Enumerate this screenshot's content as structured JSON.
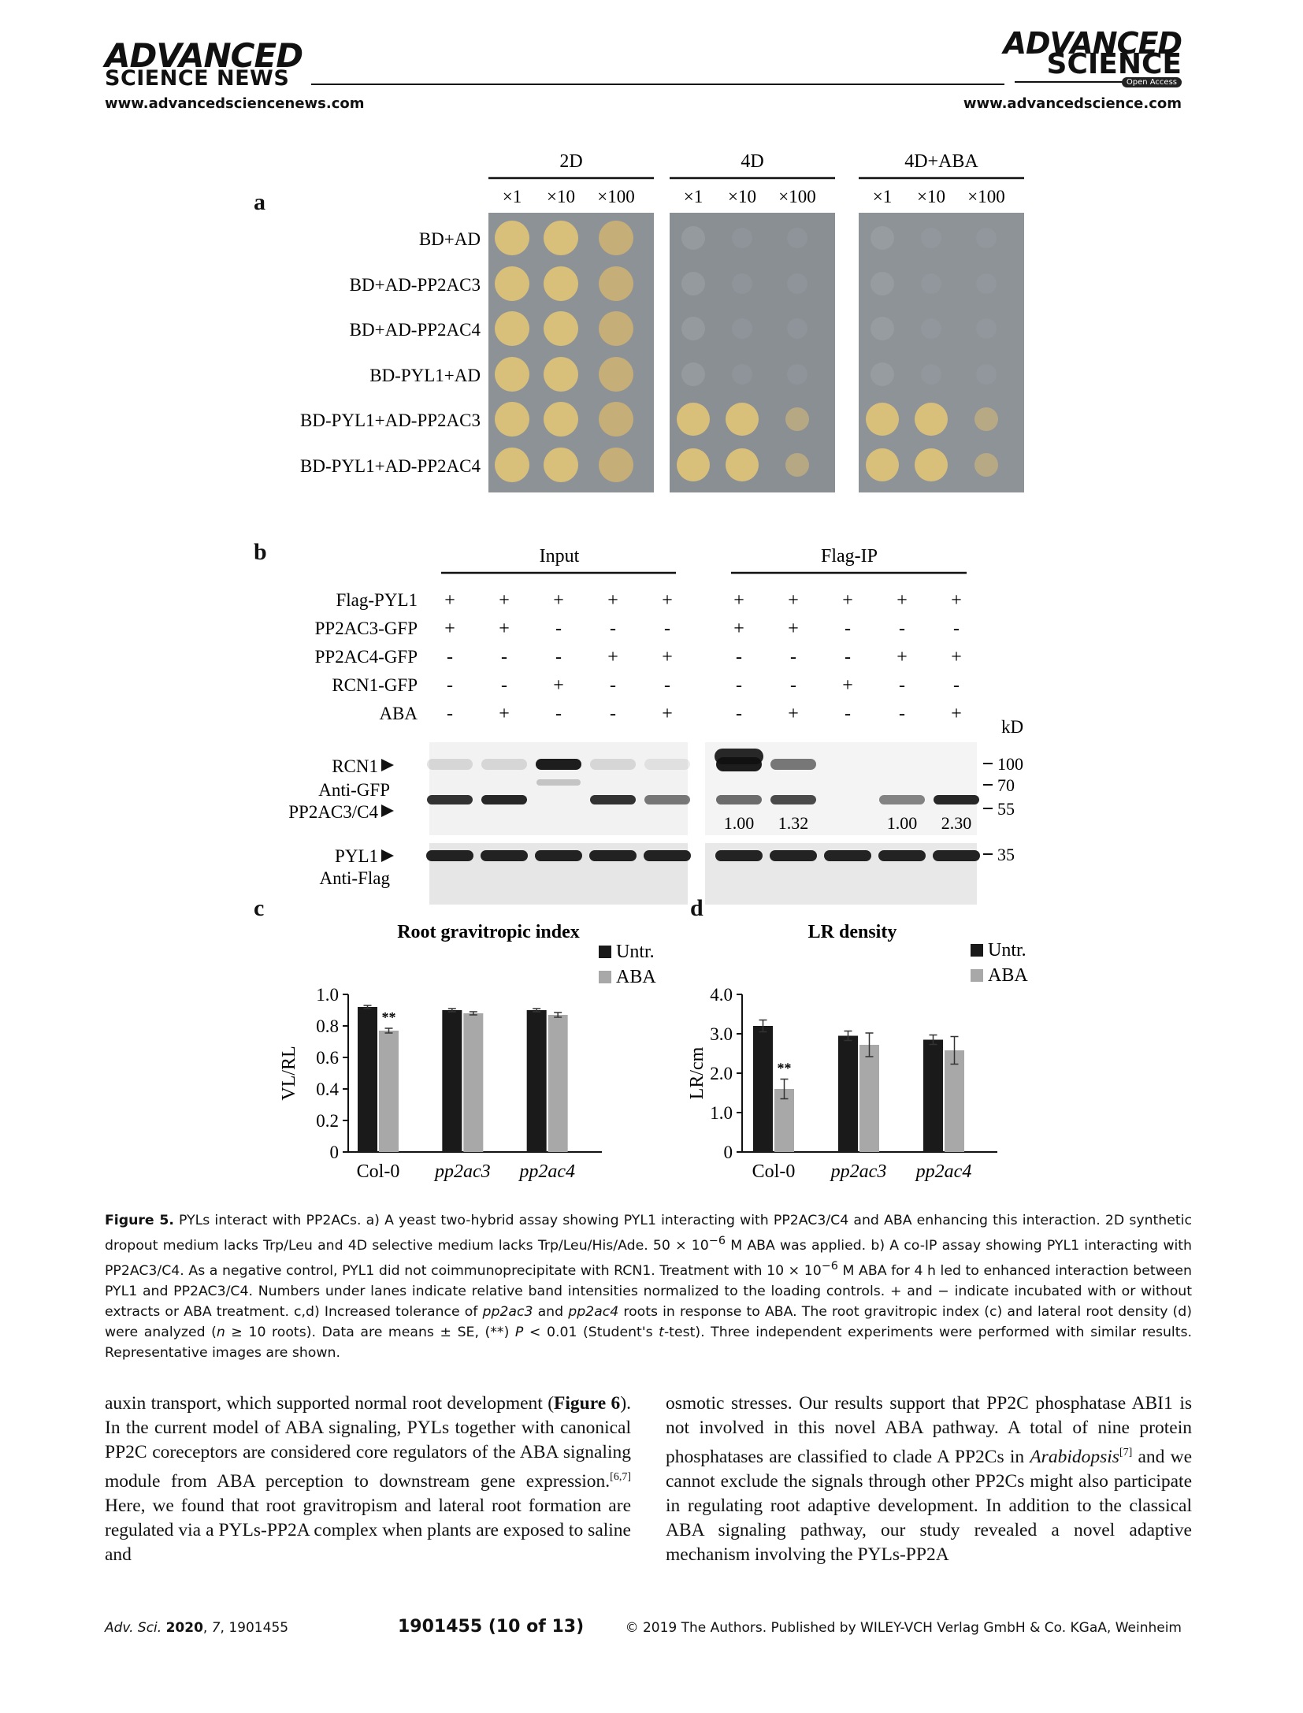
{
  "header": {
    "left_logo_line1": "ADVANCED",
    "left_logo_line2": "SCIENCE NEWS",
    "left_url": "www.advancedsciencenews.com",
    "right_logo_line1": "ADVANCED",
    "right_logo_line2": "SCIENCE",
    "right_badge": "Open Access",
    "right_url": "www.advancedscience.com"
  },
  "panel_a": {
    "label": "a",
    "groups": [
      "2D",
      "4D",
      "4D+ABA"
    ],
    "dilutions": [
      "×1",
      "×10",
      "×100"
    ],
    "rows": [
      "BD+AD",
      "BD+AD-PP2AC3",
      "BD+AD-PP2AC4",
      "BD-PYL1+AD",
      "BD-PYL1+AD-PP2AC3",
      "BD-PYL1+AD-PP2AC4"
    ]
  },
  "panel_b": {
    "label": "b",
    "group_input": "Input",
    "group_ip": "Flag-IP",
    "row_labels": [
      "Flag-PYL1",
      "PP2AC3-GFP",
      "PP2AC4-GFP",
      "RCN1-GFP",
      "ABA"
    ],
    "signs": [
      [
        "+",
        "+",
        "+",
        "+",
        "+",
        "+",
        "+",
        "+",
        "+",
        "+"
      ],
      [
        "+",
        "+",
        "-",
        "-",
        "-",
        "+",
        "+",
        "-",
        "-",
        "-"
      ],
      [
        "-",
        "-",
        "-",
        "+",
        "+",
        "-",
        "-",
        "-",
        "+",
        "+"
      ],
      [
        "-",
        "-",
        "+",
        "-",
        "-",
        "-",
        "-",
        "+",
        "-",
        "-"
      ],
      [
        "-",
        "+",
        "-",
        "-",
        "+",
        "-",
        "+",
        "-",
        "-",
        "+"
      ]
    ],
    "kd_label": "kD",
    "markers": [
      "100",
      "70",
      "55",
      "35"
    ],
    "blot_labels": {
      "rcn1": "RCN1",
      "anti_gfp": "Anti-GFP",
      "pp2ac": "PP2AC3/C4",
      "pyl1": "PYL1",
      "anti_flag": "Anti-Flag"
    },
    "intensities": [
      "1.00",
      "1.32",
      "1.00",
      "2.30"
    ]
  },
  "panel_c_label": "c",
  "panel_d_label": "d",
  "chart_data": [
    {
      "type": "bar",
      "title": "Root gravitropic index",
      "ylabel": "VL/RL",
      "xlabel": "",
      "categories": [
        "Col-0",
        "pp2ac3",
        "pp2ac4"
      ],
      "ylim": [
        0,
        1.0
      ],
      "yticks": [
        "0",
        "0.2",
        "0.4",
        "0.6",
        "0.8",
        "1.0"
      ],
      "series": [
        {
          "name": "Untr.",
          "values": [
            0.92,
            0.9,
            0.9
          ],
          "errors": [
            0.01,
            0.01,
            0.01
          ],
          "color": "#1a1a1a"
        },
        {
          "name": "ABA",
          "values": [
            0.77,
            0.88,
            0.87
          ],
          "errors": [
            0.015,
            0.01,
            0.015
          ],
          "color": "#a8a8a8"
        }
      ],
      "annotations": [
        {
          "category": "Col-0",
          "series": "ABA",
          "text": "**"
        }
      ],
      "legend": "top-right"
    },
    {
      "type": "bar",
      "title": "LR density",
      "ylabel": "LR/cm",
      "xlabel": "",
      "categories": [
        "Col-0",
        "pp2ac3",
        "pp2ac4"
      ],
      "ylim": [
        0,
        4.0
      ],
      "yticks": [
        "0",
        "1.0",
        "2.0",
        "3.0",
        "4.0"
      ],
      "series": [
        {
          "name": "Untr.",
          "values": [
            3.2,
            2.95,
            2.85
          ],
          "errors": [
            0.15,
            0.12,
            0.12
          ],
          "color": "#1a1a1a"
        },
        {
          "name": "ABA",
          "values": [
            1.6,
            2.72,
            2.58
          ],
          "errors": [
            0.25,
            0.3,
            0.35
          ],
          "color": "#a8a8a8"
        }
      ],
      "annotations": [
        {
          "category": "Col-0",
          "series": "ABA",
          "text": "**"
        }
      ],
      "legend": "top-right"
    }
  ],
  "caption": {
    "figure_label": "Figure 5.",
    "text_1": " PYLs interact with PP2ACs. a) A yeast two-hybrid assay showing PYL1 interacting with PP2AC3/C4 and ABA enhancing this interaction. 2D synthetic dropout medium lacks Trp/Leu and 4D selective medium lacks Trp/Leu/His/Ade. 50 × 10",
    "sup_1": "−6",
    "text_2": " M ABA was applied. b) A co-IP assay showing PYL1 interacting with PP2AC3/C4. As a negative control, PYL1 did not coimmunoprecipitate with RCN1. Treatment with 10 × 10",
    "sup_2": "−6",
    "text_3": " M ABA for 4 h led to enhanced interaction between PYL1 and PP2AC3/C4. Numbers under lanes indicate relative band intensities normalized to the loading controls. + and − indicate incubated with or without extracts or ABA treatment. c,d) Increased tolerance of ",
    "italic_1": "pp2ac3",
    "text_4": " and ",
    "italic_2": "pp2ac4",
    "text_5": " roots in response to ABA. The root gravitropic index (c) and lateral root density (d) were analyzed (",
    "italic_3": "n",
    "text_6": " ≥ 10 roots). Data are means ± SE, (**) ",
    "italic_4": "P",
    "text_7": " < 0.01 (Student's ",
    "italic_5": "t",
    "text_8": "-test). Three independent experiments were performed with similar results. Representative images are shown."
  },
  "body": {
    "left_1": "auxin transport, which supported normal root development (",
    "left_fig": "Figure 6",
    "left_2": "). In the current model of ABA signaling, PYLs together with canonical PP2C coreceptors are considered core regulators of the ABA signaling module from ABA perception to downstream gene expression.",
    "left_ref": "[6,7]",
    "left_3": " Here, we found that root gravitropism and lateral root formation are regulated via a PYLs-PP2A complex when plants are exposed to saline and",
    "right_1": "osmotic stresses. Our results support that PP2C phosphatase ABI1 is not involved in this novel ABA pathway. A total of nine protein phosphatases are classified to clade A PP2Cs in ",
    "right_italic": "Arabidopsis",
    "right_ref": "[7]",
    "right_2": " and we cannot exclude the signals through other PP2Cs might also participate in regulating root adaptive development. In addition to the classical ABA signaling pathway, our study revealed a novel adaptive mechanism involving the PYLs-PP2A"
  },
  "footer": {
    "journal": "Adv. Sci.",
    "year": "2020",
    "volume": "7",
    "article": "1901455",
    "page": "1901455  (10 of 13)",
    "copyright": "© 2019 The Authors. Published by WILEY-VCH Verlag GmbH & Co. KGaA, Weinheim"
  }
}
